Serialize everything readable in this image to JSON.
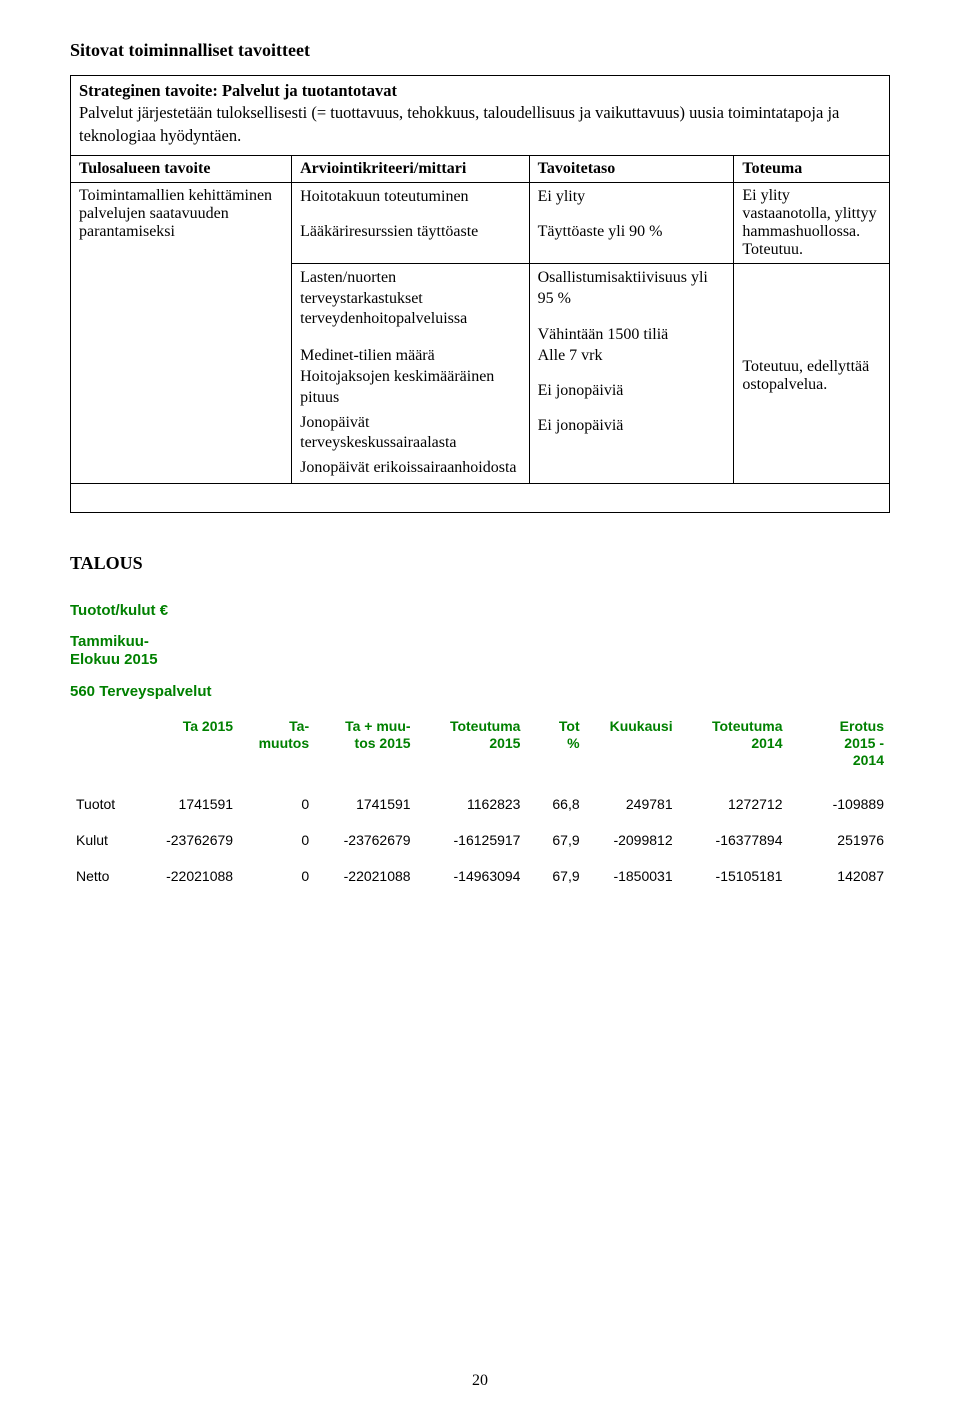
{
  "heading": "Sitovat toiminnalliset tavoitteet",
  "intro_bold": "Strateginen tavoite: Palvelut ja tuotantotavat",
  "intro_text": "Palvelut järjestetään tuloksellisesti (= tuottavuus, tehokkuus, taloudellisuus ja vaikuttavuus) uusia toimintatapoja ja teknologiaa hyödyntäen.",
  "table1": {
    "headers": [
      "Tulosalueen tavoite",
      "Arviointikriteeri/mittari",
      "Tavoitetaso",
      "Toteuma"
    ],
    "row1": {
      "c1": "Toimintamallien kehittäminen palvelujen saatavuuden parantamiseksi",
      "c2a": "Hoitotakuun toteutuminen",
      "c2b": "Lääkäriresurssien täyttöaste",
      "c3a": "Ei ylity",
      "c3b": "Täyttöaste yli 90 %",
      "c4": "Ei ylity vastaanotolla, ylittyy hammashuollossa. Toteutuu."
    },
    "row2": {
      "c2_items": [
        "Lasten/nuorten terveystarkastukset terveydenhoitopalveluissa",
        "Medinet-tilien määrä",
        "Hoitojaksojen keskimääräinen pituus",
        "Jonopäivät terveyskeskussairaalasta",
        "Jonopäivät erikoissairaanhoidosta"
      ],
      "c3_items": [
        "Osallistumisaktiivisuus yli 95 %",
        "Vähintään 1500 tiliä",
        "Alle 7 vrk",
        "Ei jonopäiviä",
        "Ei jonopäiviä"
      ],
      "c4": "Toteutuu, edellyttää ostopalvelua."
    }
  },
  "talous": {
    "heading": "TALOUS",
    "tuotot_title": "Tuotot/kulut €",
    "tammikuu_line1": "Tammikuu-",
    "tammikuu_line2": "Elokuu 2015",
    "subhead": "560 Terveyspalvelut"
  },
  "table2": {
    "headers": [
      "",
      "Ta 2015",
      "Ta-\nmuutos",
      "Ta + muu-\ntos 2015",
      "Toteutuma\n2015",
      "Tot\n%",
      "Kuukausi",
      "Toteutuma\n2014",
      "Erotus\n2015 -\n2014"
    ],
    "rows": [
      [
        "Tuotot",
        "1741591",
        "0",
        "1741591",
        "1162823",
        "66,8",
        "249781",
        "1272712",
        "-109889"
      ],
      [
        "Kulut",
        "-23762679",
        "0",
        "-23762679",
        "-16125917",
        "67,9",
        "-2099812",
        "-16377894",
        "251976"
      ],
      [
        "Netto",
        "-22021088",
        "0",
        "-22021088",
        "-14963094",
        "67,9",
        "-1850031",
        "-15105181",
        "142087"
      ]
    ]
  },
  "page_number": "20"
}
